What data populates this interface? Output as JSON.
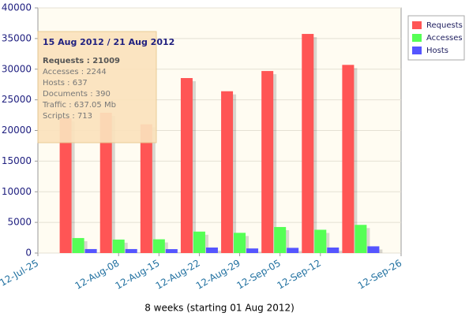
{
  "chart_data": {
    "type": "bar",
    "x": [
      "2012-08-01",
      "2012-08-08",
      "2012-08-15",
      "2012-08-22",
      "2012-08-29",
      "2012-09-05",
      "2012-09-12",
      "2012-09-19"
    ],
    "series": [
      {
        "name": "Requests",
        "color": "#ff5555",
        "values": [
          22000,
          22900,
          21009,
          28550,
          26400,
          29700,
          35750,
          30700
        ]
      },
      {
        "name": "Accesses",
        "color": "#55ff55",
        "values": [
          2450,
          2200,
          2244,
          3500,
          3300,
          4250,
          3800,
          4600
        ]
      },
      {
        "name": "Hosts",
        "color": "#5555ff",
        "values": [
          650,
          650,
          637,
          900,
          750,
          850,
          900,
          1100
        ]
      }
    ],
    "ylim": [
      0,
      40000
    ],
    "yticks": [
      0,
      5000,
      10000,
      15000,
      20000,
      25000,
      30000,
      35000,
      40000
    ],
    "xlim": [
      "2012-07-25",
      "2012-09-26"
    ],
    "xticks": [
      {
        "value": "2012-07-25",
        "label": "12-Jul-25"
      },
      {
        "value": "2012-08-08",
        "label": "12-Aug-08"
      },
      {
        "value": "2012-08-15",
        "label": "12-Aug-15"
      },
      {
        "value": "2012-08-22",
        "label": "12-Aug-22"
      },
      {
        "value": "2012-08-29",
        "label": "12-Aug-29"
      },
      {
        "value": "2012-09-05",
        "label": "12-Sep-05"
      },
      {
        "value": "2012-09-12",
        "label": "12-Sep-12"
      },
      {
        "value": "2012-09-26",
        "label": "12-Sep-26"
      }
    ],
    "x_label": "8 weeks (starting 01 Aug 2012)",
    "grid": true,
    "legend": "upper right",
    "tooltip": {
      "title": "15 Aug 2012 / 21 Aug 2012",
      "lines": [
        "Requests : 21009",
        "Accesses : 2244",
        "Hosts : 637",
        "Documents : 390",
        "Traffic : 637.05 Mb",
        "Scripts : 713"
      ]
    }
  }
}
